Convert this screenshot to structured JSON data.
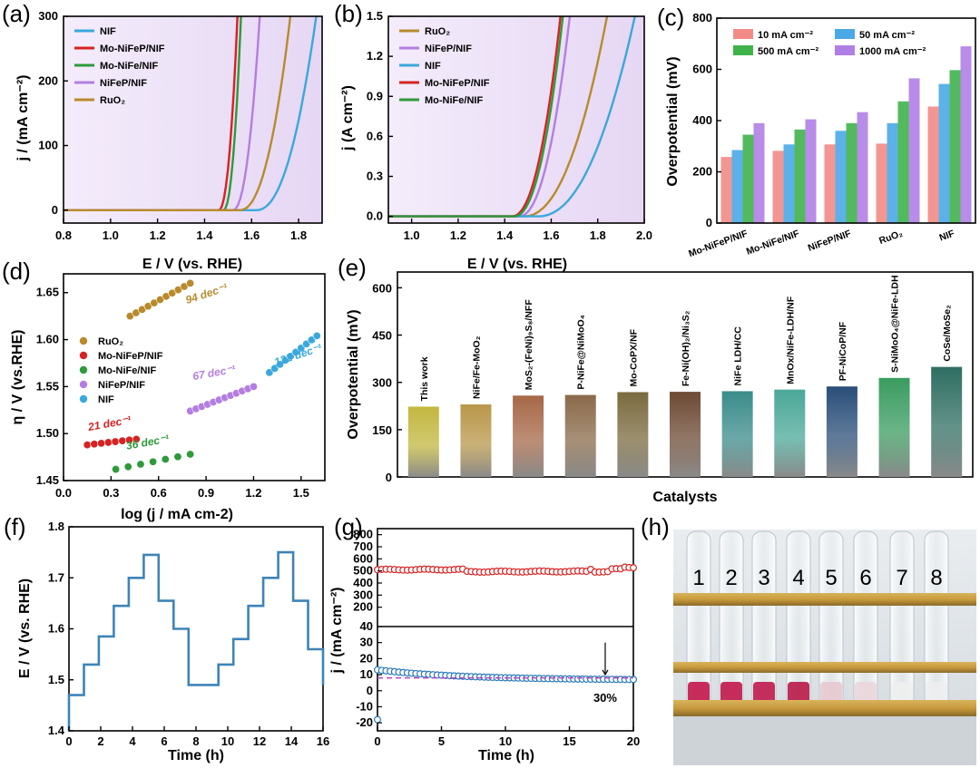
{
  "chart_data": [
    {
      "id": "a",
      "panel_label": "(a)",
      "type": "line",
      "xlabel": "E / V (vs. RHE)",
      "ylabel": "j / (mA cm⁻²)",
      "xlim": [
        0.8,
        1.9
      ],
      "ylim": [
        -20,
        300
      ],
      "xticks": [
        "0.8",
        "1.0",
        "1.2",
        "1.4",
        "1.6",
        "1.8"
      ],
      "yticks": [
        "0",
        "100",
        "200",
        "300"
      ],
      "legend_position": "top-left",
      "series": [
        {
          "name": "NIF",
          "color": "#3aa8dc",
          "onset": 1.62,
          "steep": 0.25,
          "end": 1.875
        },
        {
          "name": "Mo-NiFeP/NIF",
          "color": "#d62222",
          "onset": 1.46,
          "steep": 0.08,
          "end": 1.54
        },
        {
          "name": "Mo-NiFe/NIF",
          "color": "#2e9a3a",
          "onset": 1.48,
          "steep": 0.07,
          "end": 1.555
        },
        {
          "name": "NiFeP/NIF",
          "color": "#b47ee0",
          "onset": 1.52,
          "steep": 0.1,
          "end": 1.635
        },
        {
          "name": "RuO₂",
          "color": "#b88a2c",
          "onset": 1.55,
          "steep": 0.19,
          "end": 1.765
        }
      ]
    },
    {
      "id": "b",
      "panel_label": "(b)",
      "type": "line",
      "xlabel": "E / V (vs. RHE)",
      "ylabel": "j (A cm⁻²)",
      "xlim": [
        0.9,
        2.0
      ],
      "ylim": [
        -0.05,
        1.5
      ],
      "xticks": [
        "1.0",
        "1.2",
        "1.4",
        "1.6",
        "1.8",
        "2.0"
      ],
      "yticks": [
        "0.0",
        "0.3",
        "0.6",
        "0.9",
        "1.2",
        "1.5"
      ],
      "legend_position": "top-left",
      "series": [
        {
          "name": "RuO₂",
          "color": "#b88a2c",
          "onset": 1.48,
          "steep": 0.36,
          "end": 1.84
        },
        {
          "name": "NiFeP/NIF",
          "color": "#b47ee0",
          "onset": 1.46,
          "steep": 0.22,
          "end": 1.68
        },
        {
          "name": "NIF",
          "color": "#3aa8dc",
          "onset": 1.54,
          "steep": 0.42,
          "end": 1.96
        },
        {
          "name": "Mo-NiFeP/NIF",
          "color": "#d62222",
          "onset": 1.43,
          "steep": 0.21,
          "end": 1.64
        },
        {
          "name": "Mo-NiFe/NIF",
          "color": "#2e9a3a",
          "onset": 1.44,
          "steep": 0.21,
          "end": 1.65
        }
      ]
    },
    {
      "id": "c",
      "panel_label": "(c)",
      "type": "bar",
      "ylabel": "Overpotential (mV)",
      "ylim": [
        0,
        800
      ],
      "yticks": [
        "0",
        "200",
        "400",
        "600",
        "800"
      ],
      "categories": [
        "Mo-NiFeP/NIF",
        "Mo-NiFe/NIF",
        "NiFeP/NIF",
        "RuO₂",
        "NIF"
      ],
      "legend_position": "top-left",
      "series": [
        {
          "name": "10 mA cm⁻²",
          "color": "#f28b86",
          "values": [
            258,
            282,
            307,
            310,
            455
          ]
        },
        {
          "name": "50 mA cm⁻²",
          "color": "#4aa8e6",
          "values": [
            285,
            307,
            360,
            390,
            543
          ]
        },
        {
          "name": "500 mA cm⁻²",
          "color": "#3fb34a",
          "values": [
            345,
            365,
            390,
            475,
            597
          ]
        },
        {
          "name": "1000 mA cm⁻²",
          "color": "#b07fe6",
          "values": [
            390,
            405,
            433,
            565,
            690
          ]
        }
      ]
    },
    {
      "id": "d",
      "panel_label": "(d)",
      "type": "scatter",
      "xlabel": "log (j / mA cm-2)",
      "ylabel": "η / V (vs.RHE)",
      "xlim": [
        0.0,
        1.65
      ],
      "ylim": [
        1.45,
        1.67
      ],
      "xticks": [
        "0.0",
        "0.3",
        "0.6",
        "0.9",
        "1.2",
        "1.5"
      ],
      "yticks": [
        "1.45",
        "1.50",
        "1.55",
        "1.60",
        "1.65"
      ],
      "legend_position": "middle-left",
      "series": [
        {
          "name": "RuO₂",
          "color": "#b88a2c",
          "x0": 0.42,
          "x1": 0.8,
          "y0": 1.625,
          "y1": 1.66,
          "n": 11,
          "label": "94 dec⁻¹"
        },
        {
          "name": "Mo-NiFeP/NIF",
          "color": "#d62222",
          "x0": 0.15,
          "x1": 0.46,
          "y0": 1.488,
          "y1": 1.494,
          "n": 8,
          "label": "21 dec⁻¹"
        },
        {
          "name": "Mo-NiFe/NIF",
          "color": "#2e9a3a",
          "x0": 0.33,
          "x1": 0.8,
          "y0": 1.462,
          "y1": 1.478,
          "n": 7,
          "label": "36 dec⁻¹"
        },
        {
          "name": "NiFeP/NIF",
          "color": "#b47ee0",
          "x0": 0.8,
          "x1": 1.2,
          "y0": 1.524,
          "y1": 1.55,
          "n": 12,
          "label": "67 dec⁻¹"
        },
        {
          "name": "NIF",
          "color": "#3aa8dc",
          "x0": 1.3,
          "x1": 1.6,
          "y0": 1.565,
          "y1": 1.604,
          "n": 10,
          "label": "132 dec⁻¹"
        }
      ]
    },
    {
      "id": "e",
      "panel_label": "(e)",
      "type": "bar",
      "xlabel": "Catalysts",
      "ylabel": "Overpotential (mV)",
      "ylim": [
        0,
        650
      ],
      "yticks": [
        "0",
        "150",
        "300",
        "450",
        "600"
      ],
      "categories": [
        "This work",
        "NiFe/Fe-MoO₂",
        "MoS₂-(FeNi)₉S₈/NFF",
        "P-NiFe@NiMoO₄",
        "Mo-CoPX/NF",
        "Fe-Ni(OH)₂/Ni₃S₂",
        "NiFe LDH/CC",
        "MnOx/NiFe-LDH/NF",
        "PF-NiCoP/NF",
        "S-NiMoO₄@NiFe-LDH",
        "CoSe/MoSe₂"
      ],
      "values": [
        223,
        230,
        258,
        260,
        269,
        270,
        272,
        277,
        287,
        314,
        349
      ],
      "colors": [
        "#c2b740",
        "#b9974a",
        "#a66848",
        "#8a6a4a",
        "#7a6a3e",
        "#6d4a34",
        "#3a8c8a",
        "#4aa898",
        "#2a4e78",
        "#3a9c60",
        "#2f6e62"
      ]
    },
    {
      "id": "f",
      "panel_label": "(f)",
      "type": "line",
      "xlabel": "Time (h)",
      "ylabel": "E / V (vs. RHE)",
      "xlim": [
        0,
        16
      ],
      "ylim": [
        1.4,
        1.8
      ],
      "xticks": [
        "0",
        "2",
        "4",
        "6",
        "8",
        "10",
        "12",
        "14",
        "16"
      ],
      "yticks": [
        "1.4",
        "1.5",
        "1.6",
        "1.7",
        "1.8"
      ],
      "series": [
        {
          "name": "",
          "color": "#3e84b8",
          "steps": [
            1.47,
            1.53,
            1.585,
            1.645,
            1.7,
            1.745,
            1.655,
            1.6,
            1.49,
            1.49,
            1.53,
            1.58,
            1.645,
            1.7,
            1.75,
            1.655,
            1.56,
            1.49
          ]
        }
      ]
    },
    {
      "id": "g",
      "panel_label": "(g)",
      "type": "scatter",
      "xlabel": "Time (h)",
      "ylabel": "j / (mA cm⁻²)",
      "xlim": [
        0,
        20
      ],
      "ylim_top": [
        40,
        850
      ],
      "ylim_bottom": [
        -25,
        40
      ],
      "xticks": [
        "0",
        "5",
        "10",
        "15",
        "20"
      ],
      "yticks_top": [
        "200",
        "300",
        "400",
        "500",
        "600",
        "700",
        "800"
      ],
      "yticks_bottom": [
        "-20",
        "-10",
        "0",
        "10",
        "20",
        "30",
        "40"
      ],
      "annotation": "30%",
      "series": [
        {
          "name": "",
          "color": "#d62222",
          "start": 510,
          "end": 515
        },
        {
          "name": "",
          "color": "#2a7ab8",
          "start": 13,
          "end": 7
        }
      ],
      "reference_line": 8
    },
    {
      "id": "h",
      "panel_label": "(h)",
      "type": "photo",
      "tube_labels": [
        "1",
        "2",
        "3",
        "4",
        "5",
        "6",
        "7",
        "8"
      ]
    }
  ]
}
